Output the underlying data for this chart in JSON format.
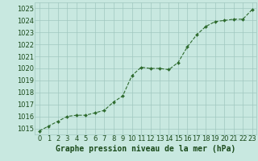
{
  "x": [
    0,
    1,
    2,
    3,
    4,
    5,
    6,
    7,
    8,
    9,
    10,
    11,
    12,
    13,
    14,
    15,
    16,
    17,
    18,
    19,
    20,
    21,
    22,
    23
  ],
  "y": [
    1014.8,
    1015.2,
    1015.6,
    1016.0,
    1016.1,
    1016.1,
    1016.3,
    1016.5,
    1017.2,
    1017.7,
    1019.4,
    1020.1,
    1020.0,
    1020.0,
    1019.9,
    1020.5,
    1021.8,
    1022.8,
    1023.5,
    1023.9,
    1024.0,
    1024.1,
    1024.1,
    1024.9
  ],
  "line_color": "#2d6a2d",
  "marker_color": "#2d6a2d",
  "bg_color": "#c8e8e0",
  "grid_color": "#a0c8c0",
  "xlabel": "Graphe pression niveau de la mer (hPa)",
  "xlabel_color": "#1a4a1a",
  "tick_label_color": "#1a4a1a",
  "ylim_min": 1014.5,
  "ylim_max": 1025.5,
  "yticks": [
    1015,
    1016,
    1017,
    1018,
    1019,
    1020,
    1021,
    1022,
    1023,
    1024,
    1025
  ],
  "xticks": [
    0,
    1,
    2,
    3,
    4,
    5,
    6,
    7,
    8,
    9,
    10,
    11,
    12,
    13,
    14,
    15,
    16,
    17,
    18,
    19,
    20,
    21,
    22,
    23
  ],
  "xlabel_fontsize": 7.0,
  "tick_fontsize": 6.0
}
